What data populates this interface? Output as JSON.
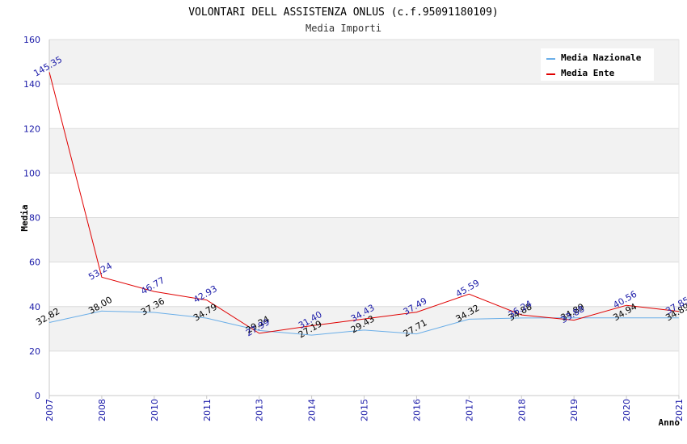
{
  "chart_data": {
    "type": "line",
    "title": "VOLONTARI DELL ASSISTENZA ONLUS (c.f.95091180109)",
    "subtitle": "Media Importi",
    "xlabel": "Anno",
    "ylabel": "Media",
    "ylim": [
      0,
      160
    ],
    "yticks": [
      "0",
      "20",
      "40",
      "60",
      "80",
      "100",
      "120",
      "140",
      "160"
    ],
    "categories": [
      "2007",
      "2008",
      "2010",
      "2011",
      "2013",
      "2014",
      "2015",
      "2016",
      "2017",
      "2018",
      "2019",
      "2020",
      "2021"
    ],
    "legend_position": "top-right",
    "series": [
      {
        "name": "Media Nazionale",
        "color": "#6aaee8",
        "label_color": "#000000",
        "values": [
          32.82,
          38.0,
          37.36,
          34.79,
          29.24,
          27.19,
          29.43,
          27.71,
          34.32,
          34.88,
          34.89,
          34.94,
          34.89
        ],
        "labels": [
          "32.82",
          "38.00",
          "37.36",
          "34.79",
          "29.24",
          "27.19",
          "29.43",
          "27.71",
          "34.32",
          "34.88",
          "34.89",
          "34.94",
          "34.89"
        ]
      },
      {
        "name": "Media Ente",
        "color": "#e00000",
        "label_color": "#1a1aa8",
        "values": [
          145.35,
          53.24,
          46.77,
          42.93,
          27.99,
          31.4,
          34.43,
          37.49,
          45.59,
          36.24,
          33.88,
          40.56,
          37.85
        ],
        "labels": [
          "145.35",
          "53.24",
          "46.77",
          "42.93",
          "27.99",
          "31.40",
          "34.43",
          "37.49",
          "45.59",
          "36.24",
          "33.88",
          "40.56",
          "37.85"
        ]
      }
    ]
  }
}
